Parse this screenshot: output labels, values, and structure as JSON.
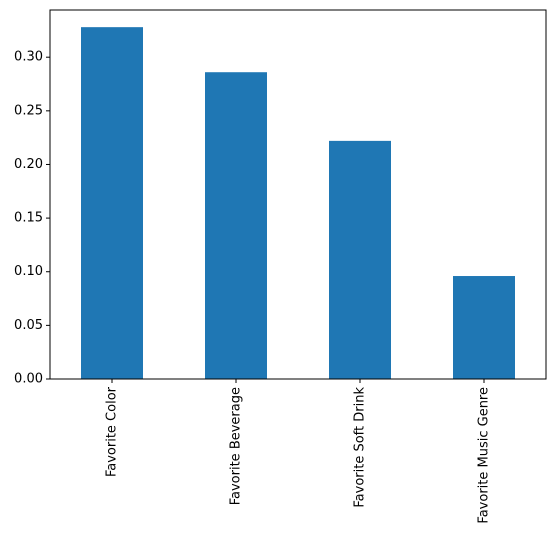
{
  "chart_data": {
    "type": "bar",
    "categories": [
      "Favorite Color",
      "Favorite Beverage",
      "Favorite Soft Drink",
      "Favorite Music Genre"
    ],
    "values": [
      0.328,
      0.286,
      0.222,
      0.096
    ],
    "color": "#1f77b4",
    "ylim": [
      0,
      0.344
    ],
    "yticks": [
      {
        "value": 0,
        "label": "0.00"
      },
      {
        "value": 0.05,
        "label": "0.05"
      },
      {
        "value": 0.1,
        "label": "0.10"
      },
      {
        "value": 0.15,
        "label": "0.15"
      },
      {
        "value": 0.2,
        "label": "0.20"
      },
      {
        "value": 0.25,
        "label": "0.25"
      },
      {
        "value": 0.3,
        "label": "0.30"
      }
    ],
    "grid": false
  }
}
